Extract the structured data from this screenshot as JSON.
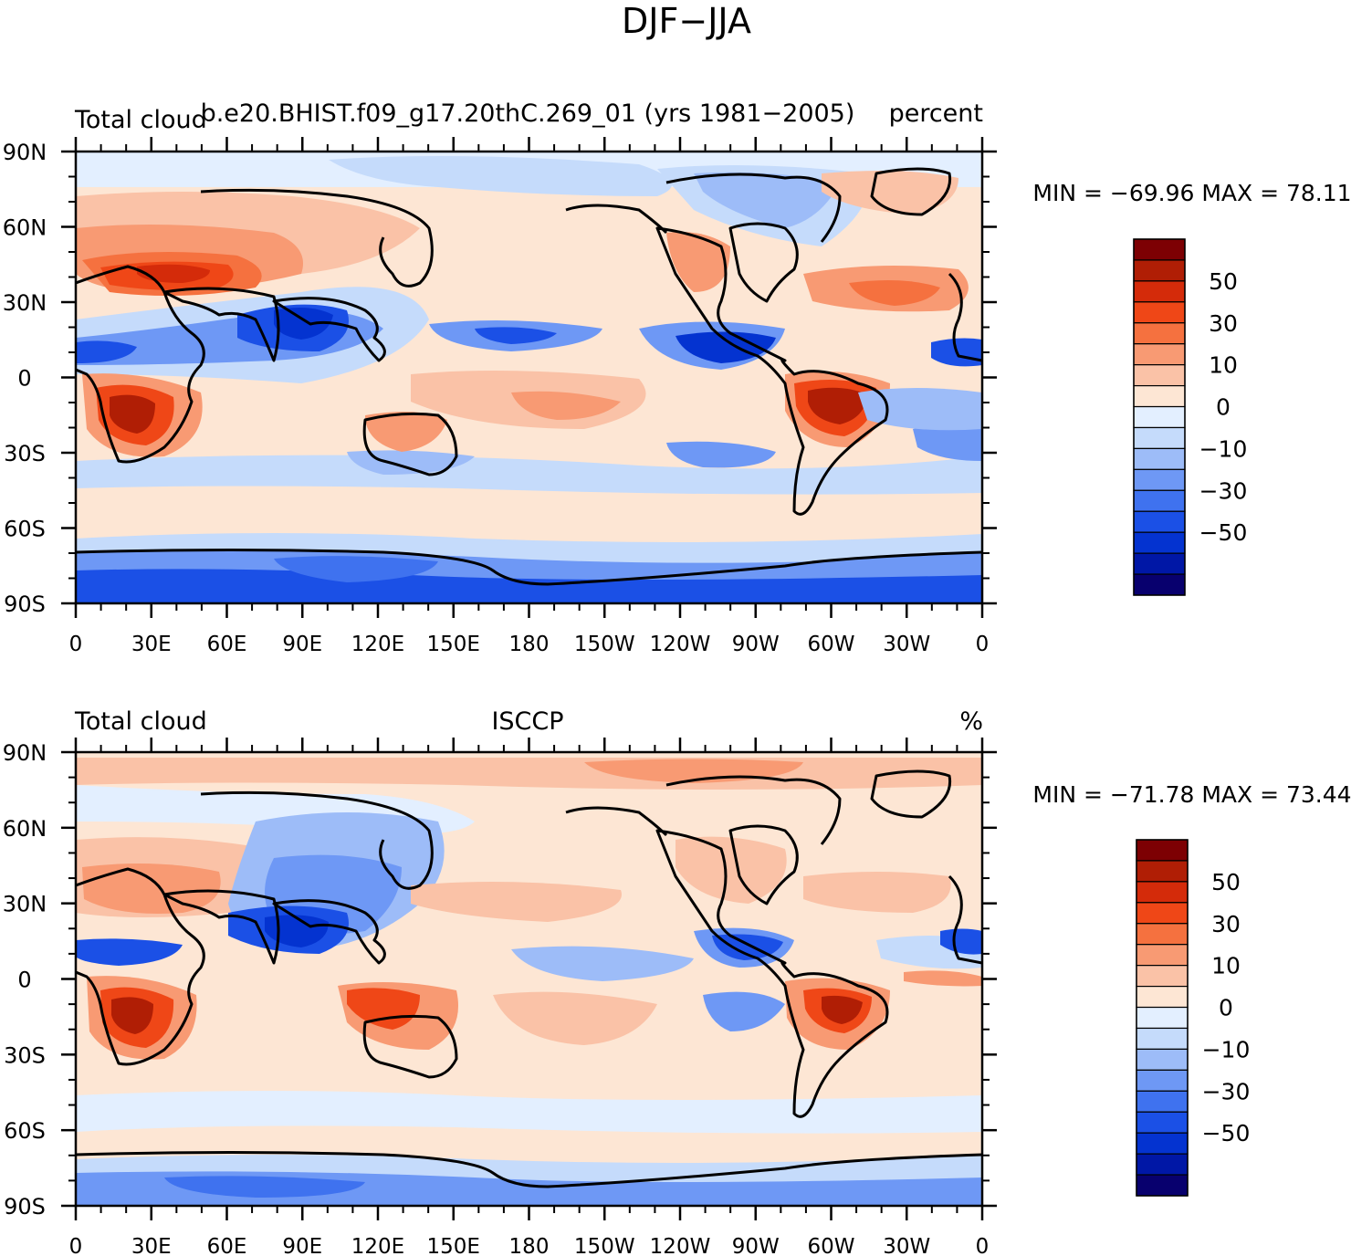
{
  "main_title": "DJF−JJA",
  "colors": {
    "levels": [
      "#08006e",
      "#0017a6",
      "#0433d0",
      "#1b50e6",
      "#3f72ef",
      "#6e98f5",
      "#9dbcf8",
      "#c5dbfb",
      "#e3efff",
      "#fde6d4",
      "#fac2a7",
      "#f89a73",
      "#f5713f",
      "#ef4717",
      "#d42b0a",
      "#b01e05",
      "#7d0003"
    ],
    "coast": "#000000"
  },
  "colorbar": {
    "labels": [
      "50",
      "30",
      "10",
      "0",
      "−10",
      "−30",
      "−50"
    ]
  },
  "axes": {
    "lat_labels": [
      "90N",
      "60N",
      "30N",
      "0",
      "30S",
      "60S",
      "90S"
    ],
    "lon_labels": [
      "0",
      "30E",
      "60E",
      "90E",
      "120E",
      "150E",
      "180",
      "150W",
      "120W",
      "90W",
      "60W",
      "30W",
      "0"
    ]
  },
  "panels": [
    {
      "left_title": "Total cloud",
      "center_title": "b.e20.BHIST.f09_g17.20thC.269_01 (yrs 1981−2005)",
      "right_title": "percent",
      "min_max": "MIN = −69.96  MAX =   78.11"
    },
    {
      "left_title": "Total cloud",
      "center_title": "ISCCP",
      "right_title": "%",
      "min_max": "MIN = −71.78  MAX =   73.44"
    }
  ]
}
